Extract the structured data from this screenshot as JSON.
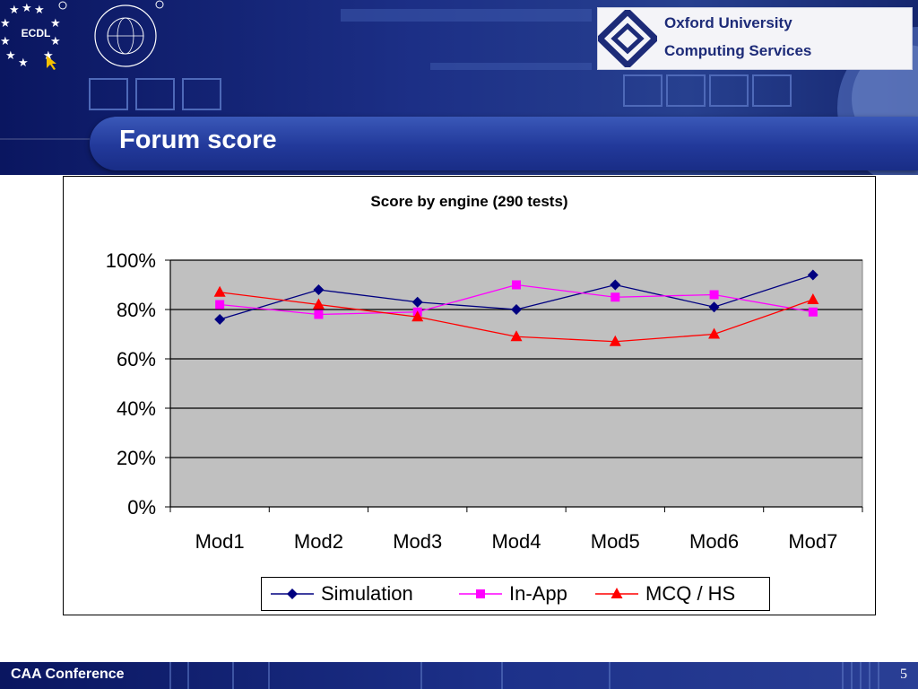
{
  "slide": {
    "title": "Forum score",
    "footer_text": "CAA Conference",
    "page_number": "5"
  },
  "logos": {
    "ecdl_text": "ECDL",
    "oucs_line1": "Oxford University",
    "oucs_line2": "Computing Services"
  },
  "chart_data": {
    "type": "line",
    "title": "Score by engine (290 tests)",
    "categories": [
      "Mod1",
      "Mod2",
      "Mod3",
      "Mod4",
      "Mod5",
      "Mod6",
      "Mod7"
    ],
    "ylim": [
      0,
      1
    ],
    "yticks": [
      0,
      0.2,
      0.4,
      0.6,
      0.8,
      1.0
    ],
    "ytick_labels": [
      "0%",
      "20%",
      "40%",
      "60%",
      "80%",
      "100%"
    ],
    "grid": true,
    "legend_position": "bottom",
    "plot_background": "#c0c0c0",
    "series": [
      {
        "name": "Simulation",
        "color": "#000080",
        "marker": "diamond",
        "values": [
          0.76,
          0.88,
          0.83,
          0.8,
          0.9,
          0.81,
          0.94
        ]
      },
      {
        "name": "In-App",
        "color": "#ff00ff",
        "marker": "square",
        "values": [
          0.82,
          0.78,
          0.79,
          0.9,
          0.85,
          0.86,
          0.79
        ]
      },
      {
        "name": "MCQ / HS",
        "color": "#ff0000",
        "marker": "triangle",
        "values": [
          0.87,
          0.82,
          0.77,
          0.69,
          0.67,
          0.7,
          0.84
        ]
      }
    ]
  }
}
